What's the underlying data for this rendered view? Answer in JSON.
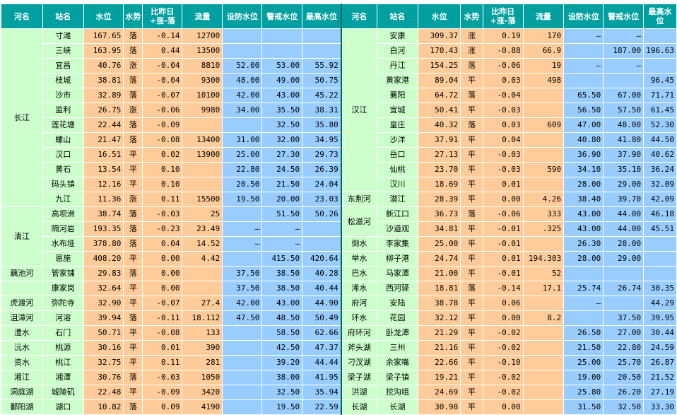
{
  "headers": {
    "river": "河名",
    "station": "站名",
    "level": "水位",
    "trend": "水势",
    "change": "比昨日+涨-落",
    "flow": "流量",
    "defense": "设防水位",
    "warning": "警戒水位",
    "highest": "最高水位"
  },
  "left_groups": [
    {
      "river": "长江",
      "rows": [
        [
          "寸滩",
          "167.65",
          "落",
          "-0.14",
          "12700",
          "",
          "",
          ""
        ],
        [
          "三峡",
          "163.95",
          "落",
          "0.44",
          "13500",
          "",
          "",
          ""
        ],
        [
          "宜昌",
          "40.76",
          "涨",
          "-0.04",
          "8810",
          "52.00",
          "53.00",
          "55.92"
        ],
        [
          "枝城",
          "38.81",
          "落",
          "-0.04",
          "9300",
          "48.00",
          "49.00",
          "50.75"
        ],
        [
          "沙市",
          "32.89",
          "落",
          "-0.07",
          "10100",
          "42.00",
          "43.00",
          "45.22"
        ],
        [
          "监利",
          "26.75",
          "涨",
          "-0.06",
          "9980",
          "34.00",
          "35.50",
          "38.31"
        ],
        [
          "莲花塘",
          "22.44",
          "落",
          "-0.09",
          "",
          "",
          "32.50",
          "35.80"
        ],
        [
          "螺山",
          "21.47",
          "落",
          "-0.08",
          "13400",
          "31.00",
          "32.00",
          "34.95"
        ],
        [
          "汉口",
          "16.51",
          "平",
          "0.02",
          "13900",
          "25.00",
          "27.30",
          "29.73"
        ],
        [
          "黄石",
          "13.54",
          "平",
          "0.10",
          "",
          "22.80",
          "24.50",
          "26.39"
        ],
        [
          "码头镇",
          "12.16",
          "平",
          "0.10",
          "",
          "20.50",
          "21.50",
          "24.04"
        ],
        [
          "九江",
          "11.36",
          "涨",
          "0.11",
          "15500",
          "19.50",
          "20.00",
          "23.03"
        ]
      ]
    },
    {
      "river": "清江",
      "rows": [
        [
          "高坝洲",
          "38.74",
          "落",
          "-0.03",
          "25",
          "",
          "51.50",
          "50.26"
        ],
        [
          "隔河岩",
          "193.35",
          "落",
          "-0.23",
          "23.49",
          "—",
          "—",
          ""
        ],
        [
          "水布垭",
          "378.80",
          "落",
          "0.04",
          "14.52",
          "—",
          "—",
          ""
        ],
        [
          "恩施",
          "408.20",
          "平",
          "0.00",
          "4.42",
          "",
          "415.50",
          "420.64"
        ]
      ]
    },
    {
      "river": "藕池河",
      "rows": [
        [
          "管家铺",
          "29.83",
          "落",
          "0.00",
          "",
          "37.50",
          "38.50",
          "40.28"
        ]
      ]
    },
    {
      "river": "",
      "rows": [
        [
          "康家岗",
          "32.64",
          "平",
          "0.00",
          "",
          "37.50",
          "38.50",
          "40.44"
        ]
      ]
    },
    {
      "river": "虎渡河",
      "rows": [
        [
          "弥陀寺",
          "32.90",
          "平",
          "-0.07",
          "27.4",
          "42.00",
          "43.00",
          "44.90"
        ]
      ]
    },
    {
      "river": "沮漳河",
      "rows": [
        [
          "河溶",
          "39.94",
          "落",
          "-0.11",
          "18.112",
          "47.50",
          "48.50",
          "50.49"
        ]
      ]
    },
    {
      "river": "澧水",
      "rows": [
        [
          "石门",
          "50.71",
          "平",
          "-0.08",
          "133",
          "",
          "58.50",
          "62.66"
        ]
      ]
    },
    {
      "river": "沅水",
      "rows": [
        [
          "桃源",
          "30.16",
          "平",
          "0.01",
          "390",
          "",
          "42.50",
          "47.37"
        ]
      ]
    },
    {
      "river": "资水",
      "rows": [
        [
          "桃江",
          "32.75",
          "平",
          "0.11",
          "281",
          "",
          "39.20",
          "44.44"
        ]
      ]
    },
    {
      "river": "湘江",
      "rows": [
        [
          "湘潭",
          "30.76",
          "落",
          "-0.03",
          "1050",
          "",
          "38.00",
          "41.95"
        ]
      ]
    },
    {
      "river": "洞庭湖",
      "rows": [
        [
          "城陵矶",
          "22.48",
          "平",
          "-0.09",
          "3420",
          "",
          "32.50",
          "35.94"
        ]
      ]
    },
    {
      "river": "鄱阳湖",
      "rows": [
        [
          "湖口",
          "10.82",
          "落",
          "0.09",
          "4190",
          "",
          "19.50",
          "22.59"
        ]
      ]
    }
  ],
  "right_groups": [
    {
      "river": "汉江",
      "rows": [
        [
          "安康",
          "309.37",
          "涨",
          "0.19",
          "170",
          "—",
          "—",
          ""
        ],
        [
          "白河",
          "170.43",
          "涨",
          "-0.88",
          "66.9",
          "",
          "187.00",
          "196.63"
        ],
        [
          "丹江",
          "154.25",
          "落",
          "-0.06",
          "19",
          "—",
          "—",
          ""
        ],
        [
          "黄家港",
          "89.04",
          "平",
          "0.03",
          "498",
          "",
          "",
          "96.45"
        ],
        [
          "襄阳",
          "64.72",
          "落",
          "-0.04",
          "",
          "65.50",
          "67.00",
          "71.71"
        ],
        [
          "宜城",
          "50.41",
          "平",
          "-0.03",
          "",
          "56.50",
          "57.50",
          "61.45"
        ],
        [
          "皇庄",
          "40.32",
          "落",
          "0.03",
          "609",
          "47.00",
          "48.00",
          "52.30"
        ],
        [
          "沙洋",
          "37.91",
          "平",
          "0.04",
          "",
          "40.80",
          "41.80",
          "44.50"
        ],
        [
          "岳口",
          "27.13",
          "平",
          "-0.03",
          "",
          "36.90",
          "37.90",
          "40.62"
        ],
        [
          "仙桃",
          "23.70",
          "平",
          "-0.03",
          "590",
          "34.10",
          "35.10",
          "36.24"
        ],
        [
          "汉川",
          "18.69",
          "平",
          "0.01",
          "",
          "28.00",
          "29.00",
          "32.09"
        ]
      ]
    },
    {
      "river": "东荆河",
      "rows": [
        [
          "潜江",
          "28.39",
          "平",
          "0.00",
          "4.26",
          "38.40",
          "39.70",
          "42.09"
        ]
      ]
    },
    {
      "river": "松滋河",
      "rows": [
        [
          "新江口",
          "36.73",
          "落",
          "-0.06",
          "333",
          "43.00",
          "44.00",
          "46.18"
        ],
        [
          "沙道观",
          "34.81",
          "平",
          "-0.01",
          ".325",
          "43.00",
          "44.00",
          "45.51"
        ]
      ]
    },
    {
      "river": "倒水",
      "rows": [
        [
          "李家集",
          "25.00",
          "平",
          "-0.01",
          "",
          "26.30",
          "28.00",
          ""
        ]
      ]
    },
    {
      "river": "举水",
      "rows": [
        [
          "柳子港",
          "24.74",
          "平",
          "0.01",
          "194.303",
          "28.00",
          "29.00",
          ""
        ]
      ]
    },
    {
      "river": "巴水",
      "rows": [
        [
          "马家潭",
          "21.00",
          "平",
          "-0.01",
          "52",
          "",
          "",
          ""
        ]
      ]
    },
    {
      "river": "浠水",
      "rows": [
        [
          "西河驿",
          "18.81",
          "落",
          "-0.14",
          "17.1",
          "25.74",
          "26.74",
          "30.35"
        ]
      ]
    },
    {
      "river": "府河",
      "rows": [
        [
          "安陆",
          "38.78",
          "平",
          "0.06",
          "",
          "—",
          "",
          "44.29"
        ]
      ]
    },
    {
      "river": "环水",
      "rows": [
        [
          "花园",
          "32.12",
          "平",
          "0.00",
          "8.2",
          "",
          "37.50",
          "39.95"
        ]
      ]
    },
    {
      "river": "府环河",
      "rows": [
        [
          "卧龙潭",
          "21.29",
          "平",
          "-0.02",
          "",
          "26.50",
          "27.00",
          "30.44"
        ]
      ]
    },
    {
      "river": "斧头湖",
      "rows": [
        [
          "三州",
          "21.16",
          "平",
          "-0.02",
          "",
          "21.50",
          "22.80",
          "24.59"
        ]
      ]
    },
    {
      "river": "刁汊湖",
      "rows": [
        [
          "余家嘴",
          "22.66",
          "平",
          "-0.10",
          "",
          "25.00",
          "25.70",
          "26.87"
        ]
      ]
    },
    {
      "river": "梁子湖",
      "rows": [
        [
          "梁子镇",
          "19.21",
          "平",
          "-0.02",
          "",
          "19.00",
          "20.50",
          "21.52"
        ]
      ]
    },
    {
      "river": "洪湖",
      "rows": [
        [
          "挖沟咀",
          "24.69",
          "平",
          "-0.02",
          "",
          "25.80",
          "26.20",
          "27.19"
        ]
      ]
    },
    {
      "river": "长湖",
      "rows": [
        [
          "长湖",
          "30.98",
          "平",
          "0.00",
          "",
          "31.50",
          "32.50",
          "33.30"
        ]
      ]
    }
  ]
}
